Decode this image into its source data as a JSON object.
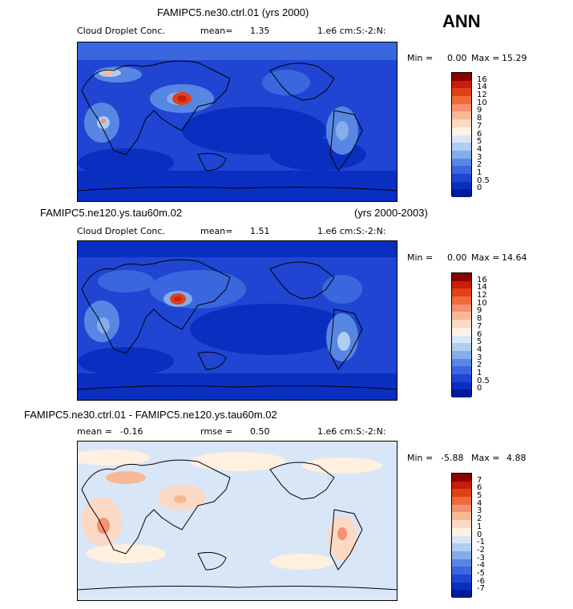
{
  "season": "ANN",
  "panels": [
    {
      "title_left": "FAMIPC5.ne30.ctrl.01 (yrs 2000)",
      "title_right": "",
      "variable": "Cloud Droplet Conc.",
      "stat1_label": "mean=",
      "stat1_value": "1.35",
      "stat2_label": "",
      "stat2_value": "",
      "units": "1.e6 cm:S:-2:N:",
      "min_label": "Min =",
      "min_value": "0.00",
      "max_label": "Max =",
      "max_value": "15.29",
      "colorbar_labels": [
        "16",
        "14",
        "12",
        "10",
        "9",
        "8",
        "7",
        "6",
        "5",
        "4",
        "3",
        "2",
        "1",
        "0.5",
        "0"
      ],
      "colorbar_colors": [
        "#8b0000",
        "#c81e0a",
        "#e0401a",
        "#f06a3c",
        "#f59070",
        "#f8b896",
        "#fbd9c4",
        "#fff2e6",
        "#d8e6f8",
        "#b0cdf2",
        "#85aceb",
        "#5886e3",
        "#3a67dd",
        "#1f45d2",
        "#0a2ec0",
        "#001a99"
      ]
    },
    {
      "title_left": "FAMIPC5.ne120.ys.tau60m.02",
      "title_right": "(yrs 2000-2003)",
      "variable": "Cloud Droplet Conc.",
      "stat1_label": "mean=",
      "stat1_value": "1.51",
      "stat2_label": "",
      "stat2_value": "",
      "units": "1.e6 cm:S:-2:N:",
      "min_label": "Min =",
      "min_value": "0.00",
      "max_label": "Max =",
      "max_value": "14.64",
      "colorbar_labels": [
        "16",
        "14",
        "12",
        "10",
        "9",
        "8",
        "7",
        "6",
        "5",
        "4",
        "3",
        "2",
        "1",
        "0.5",
        "0"
      ],
      "colorbar_colors": [
        "#8b0000",
        "#c81e0a",
        "#e0401a",
        "#f06a3c",
        "#f59070",
        "#f8b896",
        "#fbd9c4",
        "#fff2e6",
        "#d8e6f8",
        "#b0cdf2",
        "#85aceb",
        "#5886e3",
        "#3a67dd",
        "#1f45d2",
        "#0a2ec0",
        "#001a99"
      ]
    },
    {
      "title_left": "FAMIPC5.ne30.ctrl.01 - FAMIPC5.ne120.ys.tau60m.02",
      "title_right": "",
      "variable": "",
      "stat1_label": "mean =",
      "stat1_value": "-0.16",
      "stat2_label": "rmse =",
      "stat2_value": "0.50",
      "units": "1.e6 cm:S:-2:N:",
      "min_label": "Min =",
      "min_value": "-5.88",
      "max_label": "Max =",
      "max_value": "4.88",
      "colorbar_labels": [
        "7",
        "6",
        "5",
        "4",
        "3",
        "2",
        "1",
        "0",
        "-1",
        "-2",
        "-3",
        "-4",
        "-5",
        "-6",
        "-7"
      ],
      "colorbar_colors": [
        "#8b0000",
        "#c81e0a",
        "#e0401a",
        "#f06a3c",
        "#f59070",
        "#f8b896",
        "#fbd9c4",
        "#fff0e0",
        "#d8e6f8",
        "#b0cdf2",
        "#85aceb",
        "#5886e3",
        "#3a67dd",
        "#1f45d2",
        "#0a2ec0",
        "#001a99"
      ]
    }
  ]
}
